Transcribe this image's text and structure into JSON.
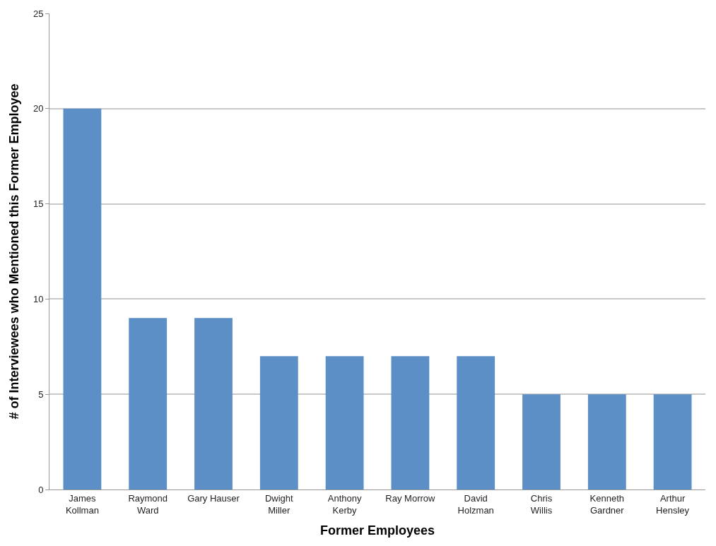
{
  "chart_data": {
    "type": "bar",
    "xlabel": "Former Employees",
    "ylabel": "# of Interviewees who Mentioned this Former Employee",
    "categories": [
      "James Kollman",
      "Raymond Ward",
      "Gary Hauser",
      "Dwight Miller",
      "Anthony Kerby",
      "Ray Morrow",
      "David Holzman",
      "Chris Willis",
      "Kenneth Gardner",
      "Arthur Hensley"
    ],
    "values": [
      20,
      9,
      9,
      7,
      7,
      7,
      7,
      5,
      5,
      5
    ],
    "color": "#5b8fc5",
    "ylim": [
      0,
      25
    ],
    "yticks": [
      0,
      5,
      10,
      15,
      20,
      25
    ],
    "grid": "y"
  }
}
